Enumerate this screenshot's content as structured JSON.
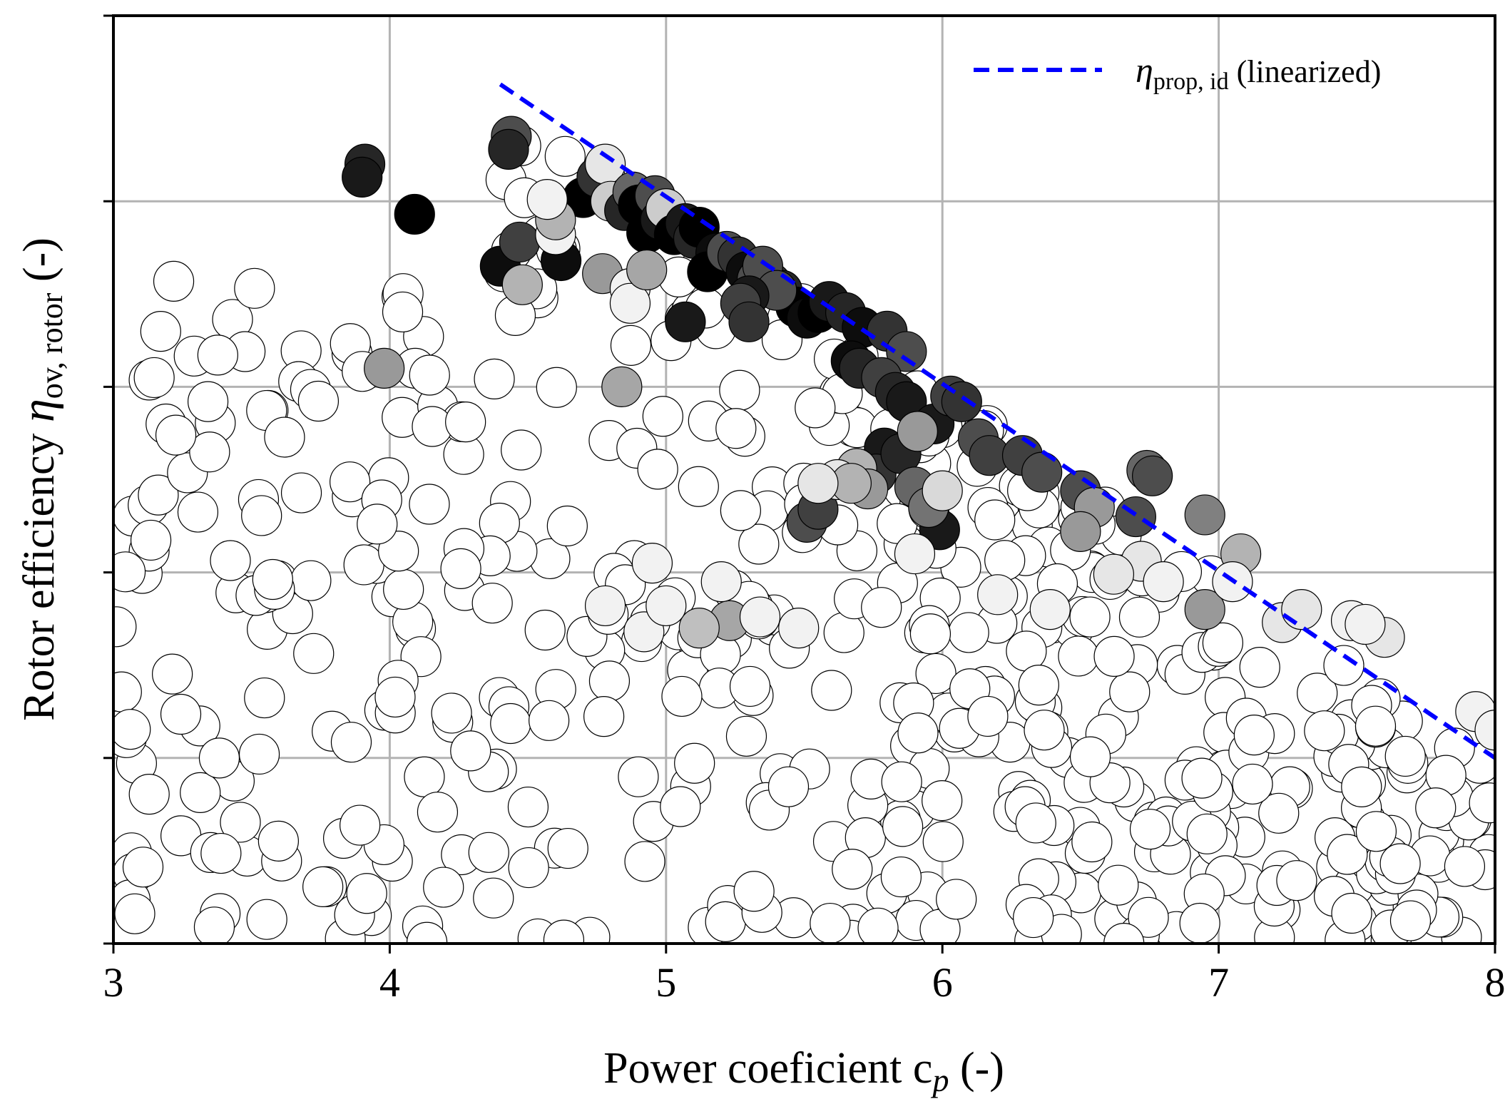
{
  "chart_data": {
    "type": "scatter",
    "xlabel": "Power coeficient c",
    "xlabel_sub": "p",
    "xlabel_suffix": " (-)",
    "ylabel": "Rotor efficiency ",
    "ylabel_symbol": "η",
    "ylabel_sub": "ov, rotor",
    "ylabel_suffix": " (-)",
    "xlim": [
      3,
      8
    ],
    "ylim": [
      0,
      5
    ],
    "x_ticks": [
      3,
      4,
      5,
      6,
      7,
      8
    ],
    "x_tick_labels": [
      "3",
      "4",
      "5",
      "6",
      "7",
      "8"
    ],
    "y_ticks": [
      0,
      1,
      2,
      3,
      4,
      5
    ],
    "y_tick_labels": [],
    "grid": true,
    "legend": {
      "placement": "top-right",
      "entries": [
        {
          "symbol": "η",
          "sub": "prop, id",
          "text": " (linearized)",
          "color": "#0000ff",
          "style": "dashed"
        }
      ]
    },
    "series": [
      {
        "type": "line",
        "style": "dashed",
        "color": "#0000ff",
        "points": [
          [
            4.4,
            4.63
          ],
          [
            8.0,
            1.0
          ]
        ]
      },
      {
        "type": "scatter",
        "note_color_scale": "gray 0=white 1=black",
        "points": [
          [
            4.44,
            4.35,
            0.7
          ],
          [
            4.43,
            4.28,
            0.85
          ],
          [
            3.91,
            4.2,
            0.85
          ],
          [
            3.9,
            4.13,
            0.9
          ],
          [
            4.09,
            3.93,
            1.0
          ],
          [
            4.7,
            4.02,
            1.0
          ],
          [
            4.75,
            4.13,
            0.8
          ],
          [
            4.78,
            4.2,
            0.1
          ],
          [
            4.8,
            4.0,
            0.2
          ],
          [
            4.85,
            3.95,
            0.85
          ],
          [
            4.88,
            4.05,
            0.6
          ],
          [
            4.9,
            3.98,
            1.0
          ],
          [
            4.93,
            3.83,
            1.0
          ],
          [
            4.96,
            4.03,
            0.7
          ],
          [
            4.98,
            3.9,
            0.9
          ],
          [
            5.0,
            3.96,
            0.2
          ],
          [
            5.03,
            3.82,
            1.0
          ],
          [
            5.07,
            3.88,
            0.9
          ],
          [
            5.1,
            3.8,
            0.85
          ],
          [
            5.12,
            3.86,
            1.0
          ],
          [
            5.18,
            3.72,
            0.95
          ],
          [
            5.15,
            3.62,
            1.0
          ],
          [
            5.22,
            3.73,
            0.7
          ],
          [
            5.26,
            3.7,
            0.8
          ],
          [
            5.29,
            3.62,
            0.95
          ],
          [
            5.33,
            3.58,
            0.7
          ],
          [
            5.38,
            3.56,
            0.8
          ],
          [
            5.42,
            3.52,
            0.85
          ],
          [
            5.47,
            3.43,
            1.0
          ],
          [
            5.51,
            3.37,
            0.95
          ],
          [
            5.55,
            3.4,
            1.0
          ],
          [
            5.59,
            3.46,
            0.9
          ],
          [
            5.65,
            3.4,
            0.85
          ],
          [
            5.71,
            3.32,
            0.95
          ],
          [
            5.8,
            3.3,
            0.8
          ],
          [
            5.87,
            3.19,
            0.7
          ],
          [
            5.67,
            3.14,
            0.95
          ],
          [
            5.7,
            3.1,
            0.85
          ],
          [
            5.78,
            3.05,
            0.75
          ],
          [
            5.83,
            2.97,
            0.85
          ],
          [
            5.87,
            2.92,
            0.9
          ],
          [
            5.97,
            2.8,
            0.9
          ],
          [
            6.03,
            2.95,
            0.75
          ],
          [
            6.07,
            2.92,
            0.8
          ],
          [
            5.79,
            2.67,
            0.9
          ],
          [
            5.76,
            2.53,
            0.8
          ],
          [
            5.85,
            2.64,
            0.85
          ],
          [
            5.91,
            2.76,
            0.4
          ],
          [
            5.51,
            2.27,
            0.7
          ],
          [
            5.55,
            2.34,
            0.75
          ],
          [
            5.69,
            2.56,
            0.3
          ],
          [
            5.9,
            2.46,
            0.6
          ],
          [
            5.99,
            2.23,
            0.9
          ],
          [
            5.95,
            2.35,
            0.55
          ],
          [
            6.0,
            2.44,
            0.15
          ],
          [
            6.13,
            2.72,
            0.7
          ],
          [
            6.17,
            2.63,
            0.75
          ],
          [
            6.29,
            2.63,
            0.75
          ],
          [
            6.36,
            2.54,
            0.7
          ],
          [
            6.5,
            2.44,
            0.7
          ],
          [
            6.55,
            2.35,
            0.4
          ],
          [
            6.5,
            2.22,
            0.4
          ],
          [
            6.74,
            2.55,
            0.6
          ],
          [
            6.76,
            2.52,
            0.7
          ],
          [
            6.95,
            2.31,
            0.5
          ],
          [
            7.08,
            2.1,
            0.3
          ],
          [
            6.72,
            2.06,
            0.1
          ],
          [
            6.7,
            2.3,
            0.7
          ],
          [
            6.62,
            1.99,
            0.1
          ],
          [
            6.95,
            1.8,
            0.4
          ],
          [
            5.35,
            3.65,
            0.7
          ],
          [
            5.4,
            3.52,
            0.7
          ],
          [
            5.3,
            3.49,
            0.9
          ],
          [
            5.27,
            3.45,
            0.75
          ],
          [
            5.3,
            3.35,
            0.8
          ],
          [
            5.07,
            3.35,
            0.9
          ],
          [
            4.62,
            3.68,
            0.95
          ],
          [
            4.4,
            3.65,
            0.95
          ],
          [
            4.47,
            3.78,
            0.75
          ],
          [
            4.48,
            3.55,
            0.3
          ],
          [
            4.6,
            3.82,
            0.05
          ],
          [
            4.6,
            3.9,
            0.3
          ],
          [
            4.57,
            4.01,
            0.05
          ],
          [
            4.77,
            3.61,
            0.4
          ],
          [
            4.87,
            3.53,
            0.05
          ],
          [
            4.87,
            3.45,
            0.05
          ],
          [
            4.93,
            3.63,
            0.35
          ],
          [
            4.84,
            3.0,
            0.35
          ],
          [
            3.98,
            3.1,
            0.4
          ],
          [
            5.62,
            2.5,
            0.1
          ],
          [
            5.73,
            2.45,
            0.4
          ],
          [
            5.67,
            2.48,
            0.3
          ],
          [
            5.55,
            2.48,
            0.1
          ],
          [
            5.23,
            1.74,
            0.35
          ],
          [
            5.12,
            1.7,
            0.25
          ],
          [
            4.92,
            1.68,
            0.05
          ],
          [
            4.78,
            1.82,
            0.05
          ],
          [
            4.95,
            2.05,
            0.05
          ],
          [
            5.0,
            1.82,
            0.05
          ],
          [
            5.2,
            1.95,
            0.05
          ],
          [
            5.34,
            1.76,
            0.05
          ],
          [
            5.48,
            1.7,
            0.05
          ],
          [
            5.9,
            2.1,
            0.05
          ],
          [
            6.2,
            1.88,
            0.05
          ],
          [
            6.39,
            1.8,
            0.05
          ],
          [
            6.8,
            1.95,
            0.05
          ],
          [
            7.05,
            1.95,
            0.05
          ],
          [
            7.23,
            1.73,
            0.1
          ],
          [
            7.3,
            1.8,
            0.1
          ],
          [
            7.48,
            1.74,
            0.05
          ],
          [
            7.6,
            1.65,
            0.1
          ],
          [
            7.53,
            1.72,
            0.05
          ],
          [
            7.93,
            1.25,
            0.05
          ],
          [
            8.0,
            1.15,
            0.05
          ]
        ]
      }
    ]
  },
  "legend_line_color": "#0000ff"
}
